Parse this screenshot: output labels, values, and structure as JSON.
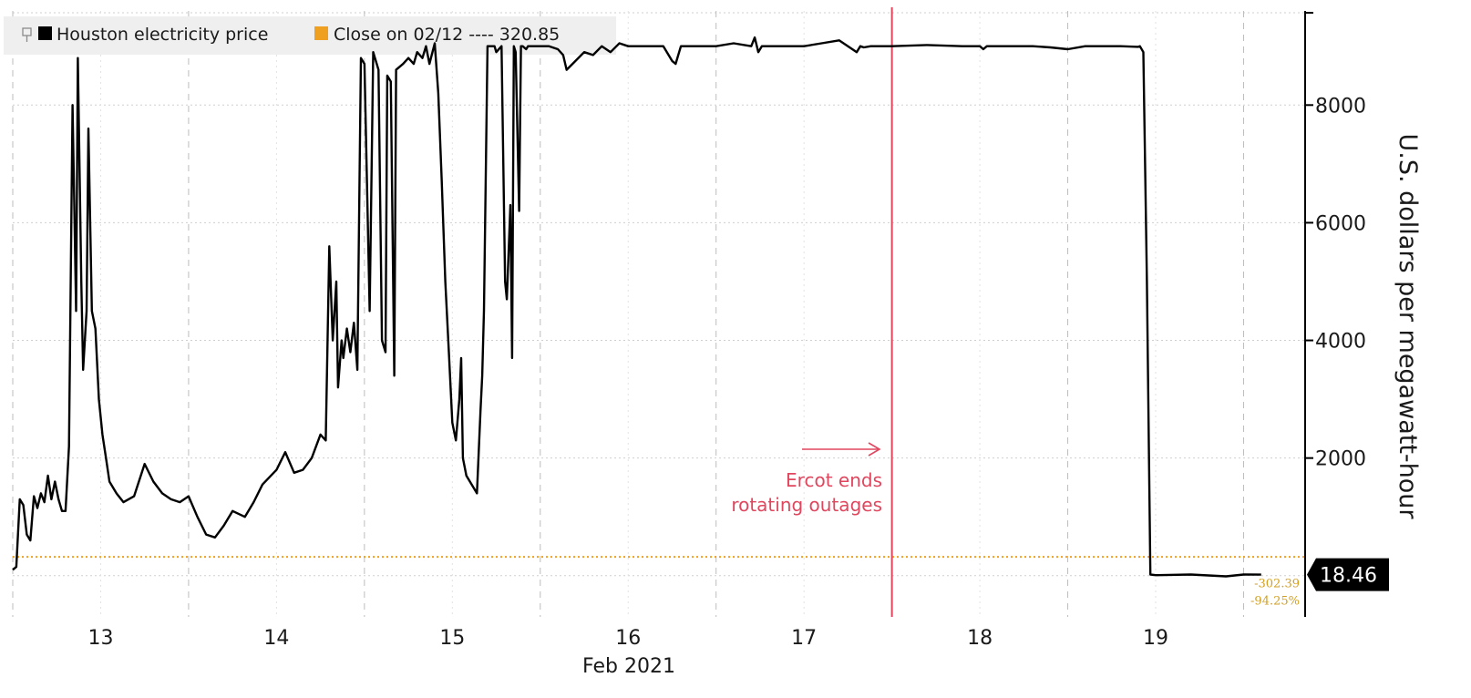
{
  "chart_data": {
    "type": "line",
    "legend": {
      "series_label": "Houston electricity price",
      "series_swatch": "#000000",
      "close_label": "Close on 02/12 ---- 320.85",
      "close_swatch": "#f0a020",
      "placement": "top-left"
    },
    "ylabel": "U.S. dollars per megawatt-hour",
    "ylim": [
      -700,
      9600
    ],
    "yticks": [
      2000,
      4000,
      6000,
      8000
    ],
    "ytick_labels": [
      "2000",
      "4000",
      "6000",
      "8000"
    ],
    "x_domain": [
      12.5,
      19.85
    ],
    "x_unit": "day of Feb 2021",
    "xticks": [
      13,
      14,
      15,
      16,
      17,
      18,
      19
    ],
    "xtick_labels": [
      "13",
      "14",
      "15",
      "16",
      "17",
      "18",
      "19"
    ],
    "xlabel_sub": "Feb 2021",
    "grid": true,
    "reference_line": {
      "value": 320.85,
      "color": "#f0a020"
    },
    "event_line": {
      "x": 17.5,
      "color": "#e0475f"
    },
    "annotation": {
      "line1": "Ercot ends",
      "line2": "rotating outages"
    },
    "last_value_label": "18.46",
    "change_abs": "-302.39",
    "change_pct": "-94.25%",
    "series": [
      {
        "color": "#000000",
        "x": [
          12.5,
          12.52,
          12.54,
          12.56,
          12.58,
          12.6,
          12.62,
          12.64,
          12.66,
          12.68,
          12.7,
          12.72,
          12.74,
          12.76,
          12.78,
          12.8,
          12.82,
          12.84,
          12.86,
          12.87,
          12.89,
          12.9,
          12.92,
          12.93,
          12.95,
          12.97,
          12.99,
          13.01,
          13.03,
          13.05,
          13.09,
          13.13,
          13.19,
          13.25,
          13.3,
          13.35,
          13.4,
          13.45,
          13.5,
          13.55,
          13.6,
          13.65,
          13.7,
          13.75,
          13.82,
          13.87,
          13.92,
          14.0,
          14.05,
          14.1,
          14.15,
          14.2,
          14.25,
          14.28,
          14.3,
          14.32,
          14.34,
          14.35,
          14.37,
          14.38,
          14.4,
          14.42,
          14.44,
          14.46,
          14.48,
          14.5,
          14.53,
          14.55,
          14.58,
          14.6,
          14.62,
          14.63,
          14.65,
          14.67,
          14.68,
          14.72,
          14.75,
          14.78,
          14.8,
          14.83,
          14.85,
          14.87,
          14.9,
          14.92,
          14.94,
          14.96,
          14.98,
          15.0,
          15.02,
          15.04,
          15.05,
          15.06,
          15.08,
          15.1,
          15.12,
          15.14,
          15.16,
          15.17,
          15.18,
          15.2,
          15.22,
          15.24,
          15.25,
          15.28,
          15.3,
          15.31,
          15.33,
          15.34,
          15.35,
          15.36,
          15.38,
          15.39,
          15.4,
          15.42,
          15.43,
          15.45,
          15.47,
          15.5,
          15.55,
          15.6,
          15.63,
          15.65,
          15.7,
          15.75,
          15.8,
          15.85,
          15.9,
          15.95,
          16.0,
          16.1,
          16.2,
          16.25,
          16.27,
          16.3,
          16.4,
          16.5,
          16.6,
          16.7,
          16.72,
          16.74,
          16.76,
          16.8,
          16.9,
          17.0,
          17.1,
          17.2,
          17.3,
          17.32,
          17.34,
          17.38,
          17.5,
          17.7,
          17.9,
          18.0,
          18.02,
          18.04,
          18.1,
          18.2,
          18.3,
          18.4,
          18.5,
          18.6,
          18.7,
          18.8,
          18.9,
          18.91,
          18.93,
          18.95,
          18.97,
          19.0,
          19.2,
          19.4,
          19.5,
          19.6
        ],
        "y": [
          100,
          150,
          1300,
          1200,
          700,
          600,
          1350,
          1150,
          1400,
          1250,
          1700,
          1300,
          1600,
          1300,
          1100,
          1100,
          2200,
          8000,
          4500,
          8800,
          5000,
          3500,
          4500,
          7600,
          4500,
          4200,
          3000,
          2400,
          2000,
          1600,
          1400,
          1250,
          1350,
          1900,
          1600,
          1400,
          1300,
          1250,
          1350,
          1000,
          700,
          650,
          850,
          1100,
          1000,
          1250,
          1550,
          1800,
          2100,
          1750,
          1800,
          2000,
          2400,
          2300,
          5600,
          4000,
          5000,
          3200,
          4000,
          3700,
          4200,
          3800,
          4300,
          3500,
          8800,
          8700,
          4500,
          8900,
          8600,
          4000,
          3800,
          8500,
          8400,
          3400,
          8600,
          8700,
          8800,
          8700,
          8900,
          8800,
          9000,
          8700,
          9050,
          8200,
          6700,
          5000,
          3800,
          2600,
          2300,
          3000,
          3700,
          2000,
          1700,
          1600,
          1500,
          1400,
          2800,
          3400,
          4500,
          9000,
          9000,
          9000,
          8900,
          9000,
          5000,
          4700,
          6300,
          3700,
          9000,
          8900,
          6200,
          9000,
          9000,
          8950,
          9000,
          9000,
          9000,
          9000,
          9000,
          8950,
          8850,
          8600,
          8750,
          8900,
          8850,
          9000,
          8900,
          9050,
          9000,
          9000,
          9000,
          8750,
          8700,
          9000,
          9000,
          9000,
          9050,
          9000,
          9150,
          8900,
          9000,
          9000,
          9000,
          9000,
          9050,
          9100,
          8900,
          9000,
          8980,
          9000,
          9000,
          9020,
          9000,
          9000,
          8950,
          9000,
          9000,
          9000,
          9000,
          8980,
          8950,
          9000,
          9000,
          9000,
          8990,
          9000,
          8900,
          5000,
          20,
          10,
          20,
          -10,
          20,
          18.46
        ]
      }
    ]
  }
}
